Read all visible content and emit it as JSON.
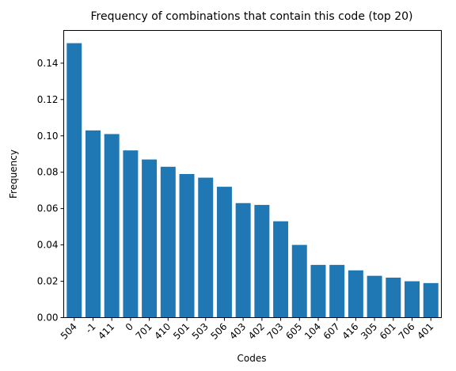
{
  "chart_data": {
    "type": "bar",
    "title": "Frequency of combinations that contain this code (top 20)",
    "xlabel": "Codes",
    "ylabel": "Frequency",
    "categories": [
      "504",
      "-1",
      "411",
      "0",
      "701",
      "410",
      "501",
      "503",
      "506",
      "403",
      "402",
      "703",
      "605",
      "104",
      "607",
      "416",
      "305",
      "601",
      "706",
      "401"
    ],
    "values": [
      0.151,
      0.103,
      0.101,
      0.092,
      0.087,
      0.083,
      0.079,
      0.077,
      0.072,
      0.063,
      0.062,
      0.053,
      0.04,
      0.029,
      0.029,
      0.026,
      0.023,
      0.022,
      0.02,
      0.019
    ],
    "ylim": [
      0,
      0.158
    ],
    "yticks": [
      "0.00",
      "0.02",
      "0.04",
      "0.06",
      "0.08",
      "0.10",
      "0.12",
      "0.14"
    ],
    "bar_color": "#1f77b4",
    "grid": false,
    "legend": "none"
  }
}
